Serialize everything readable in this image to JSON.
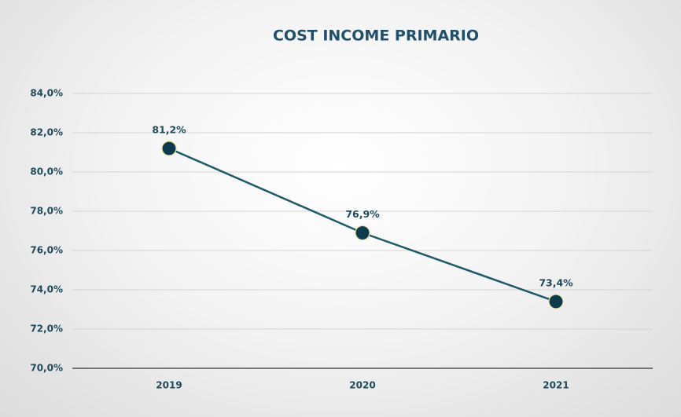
{
  "chart_data": {
    "type": "line",
    "title": "COST INCOME PRIMARIO",
    "categories": [
      "2019",
      "2020",
      "2021"
    ],
    "values": [
      81.2,
      76.9,
      73.4
    ],
    "value_labels": [
      "81,2%",
      "76,9%",
      "73,4%"
    ],
    "color": "#1d5a6a",
    "marker_color": "#0e3a4e",
    "ylim": [
      70,
      84
    ],
    "yticks": [
      {
        "value": 70,
        "label": "70,0%"
      },
      {
        "value": 72,
        "label": "72,0%"
      },
      {
        "value": 74,
        "label": "74,0%"
      },
      {
        "value": 76,
        "label": "76,0%"
      },
      {
        "value": 78,
        "label": "78,0%"
      },
      {
        "value": 80,
        "label": "80,0%"
      },
      {
        "value": 82,
        "label": "82,0%"
      },
      {
        "value": 84,
        "label": "84,0%"
      }
    ],
    "grid": true
  }
}
